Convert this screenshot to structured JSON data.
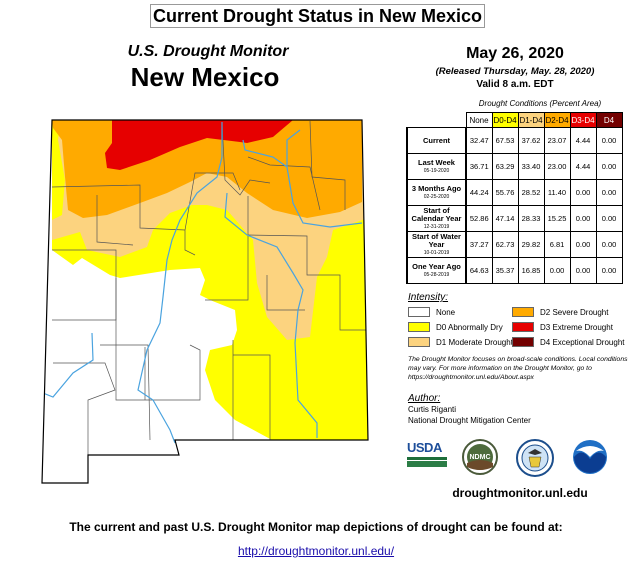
{
  "title": "Current Drought Status in New Mexico",
  "map": {
    "heading": "U.S. Drought Monitor",
    "state": "New Mexico",
    "colors": {
      "none": "#ffffff",
      "d0": "#ffff00",
      "d1": "#fcd37f",
      "d2": "#ffaa00",
      "d3": "#e60000",
      "d4": "#730000",
      "river": "#4aa3df",
      "county": "#555555"
    }
  },
  "date": "May 26, 2020",
  "released": "(Released Thursday, May. 28, 2020)",
  "valid": "Valid 8 a.m. EDT",
  "table": {
    "caption": "Drought Conditions (Percent Area)",
    "headers": [
      "None",
      "D0-D4",
      "D1-D4",
      "D2-D4",
      "D3-D4",
      "D4"
    ],
    "rows": [
      {
        "label": "Current",
        "date": "",
        "values": [
          "32.47",
          "67.53",
          "37.62",
          "23.07",
          "4.44",
          "0.00"
        ]
      },
      {
        "label": "Last Week",
        "date": "05-19-2020",
        "values": [
          "36.71",
          "63.29",
          "33.40",
          "23.00",
          "4.44",
          "0.00"
        ]
      },
      {
        "label": "3 Months Ago",
        "date": "02-25-2020",
        "values": [
          "44.24",
          "55.76",
          "28.52",
          "11.40",
          "0.00",
          "0.00"
        ]
      },
      {
        "label": "Start of Calendar Year",
        "date": "12-31-2019",
        "values": [
          "52.86",
          "47.14",
          "28.33",
          "15.25",
          "0.00",
          "0.00"
        ]
      },
      {
        "label": "Start of Water Year",
        "date": "10-01-2019",
        "values": [
          "37.27",
          "62.73",
          "29.82",
          "6.81",
          "0.00",
          "0.00"
        ]
      },
      {
        "label": "One Year Ago",
        "date": "05-28-2019",
        "values": [
          "64.63",
          "35.37",
          "16.85",
          "0.00",
          "0.00",
          "0.00"
        ]
      }
    ]
  },
  "legend": {
    "title": "Intensity:",
    "items": [
      {
        "label": "None",
        "color": "#ffffff"
      },
      {
        "label": "D0 Abnormally Dry",
        "color": "#ffff00"
      },
      {
        "label": "D1 Moderate Drought",
        "color": "#fcd37f"
      },
      {
        "label": "D2 Severe Drought",
        "color": "#ffaa00"
      },
      {
        "label": "D3 Extreme Drought",
        "color": "#e60000"
      },
      {
        "label": "D4 Exceptional Drought",
        "color": "#730000"
      }
    ]
  },
  "note": "The Drought Monitor focuses on broad-scale conditions. Local conditions may vary. For more information on the Drought Monitor, go to https://droughtmonitor.unl.edu/About.aspx",
  "author": {
    "label": "Author:",
    "name": "Curtis Riganti",
    "org": "National Drought Mitigation Center"
  },
  "logos": {
    "usda": "USDA",
    "ndmc": "NDMC",
    "noaa": "NOAA"
  },
  "site": "droughtmonitor.unl.edu",
  "footer": "The current and past U.S. Drought Monitor map depictions of drought can be found at:",
  "link": "http://droughtmonitor.unl.edu/"
}
